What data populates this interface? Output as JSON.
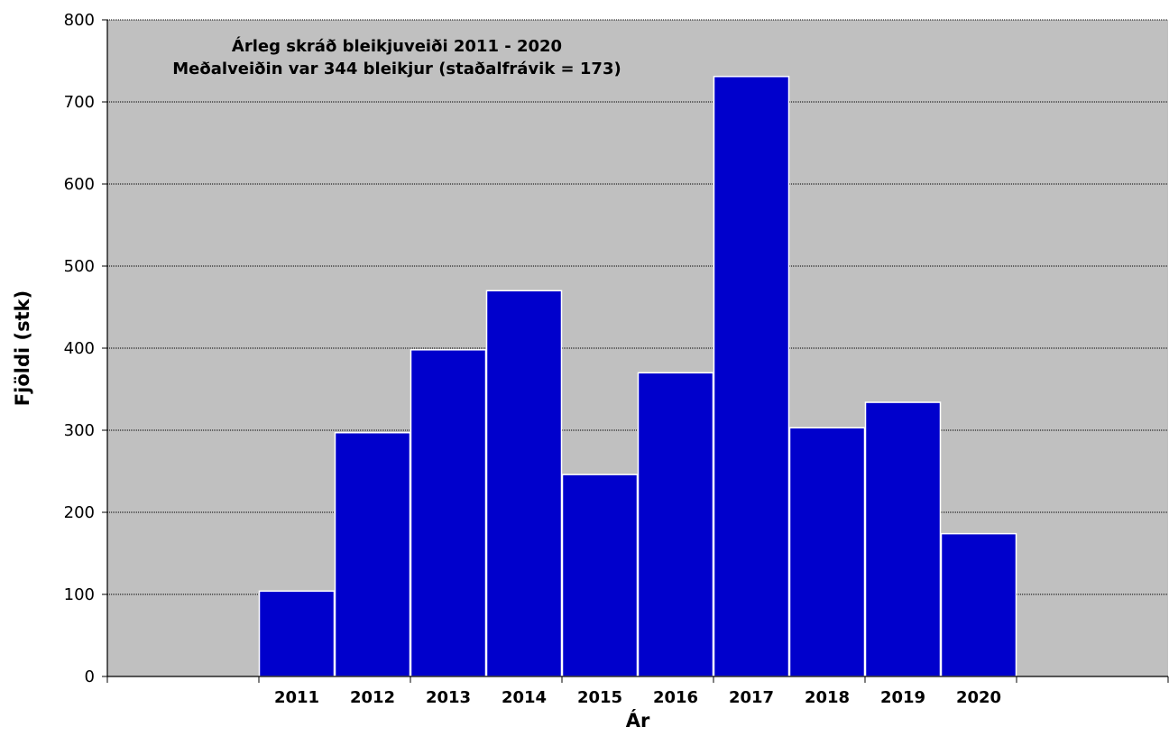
{
  "chart_data": {
    "type": "bar",
    "title": "Árleg skráð bleikjuveiði 2011 - 2020",
    "subtitle": "Meðalveiðin var 344 bleikjur (staðalfrávik = 173)",
    "xlabel": "Ár",
    "ylabel": "Fjöldi (stk)",
    "slots": [
      "",
      "",
      "2011",
      "2012",
      "2013",
      "2014",
      "2015",
      "2016",
      "2017",
      "2018",
      "2019",
      "2020",
      "",
      ""
    ],
    "categories": [
      "2011",
      "2012",
      "2013",
      "2014",
      "2015",
      "2016",
      "2017",
      "2018",
      "2019",
      "2020"
    ],
    "values": [
      104,
      297,
      398,
      470,
      246,
      370,
      731,
      303,
      334,
      174
    ],
    "ylim": [
      0,
      800
    ],
    "yticks": [
      0,
      100,
      200,
      300,
      400,
      500,
      600,
      700,
      800
    ],
    "grid": true,
    "legend": "none",
    "colors": {
      "bar": "#0000CC",
      "bar_edge": "#FFFFFF",
      "plot_background": "#C0C0C0",
      "gridline": "#000000"
    }
  }
}
